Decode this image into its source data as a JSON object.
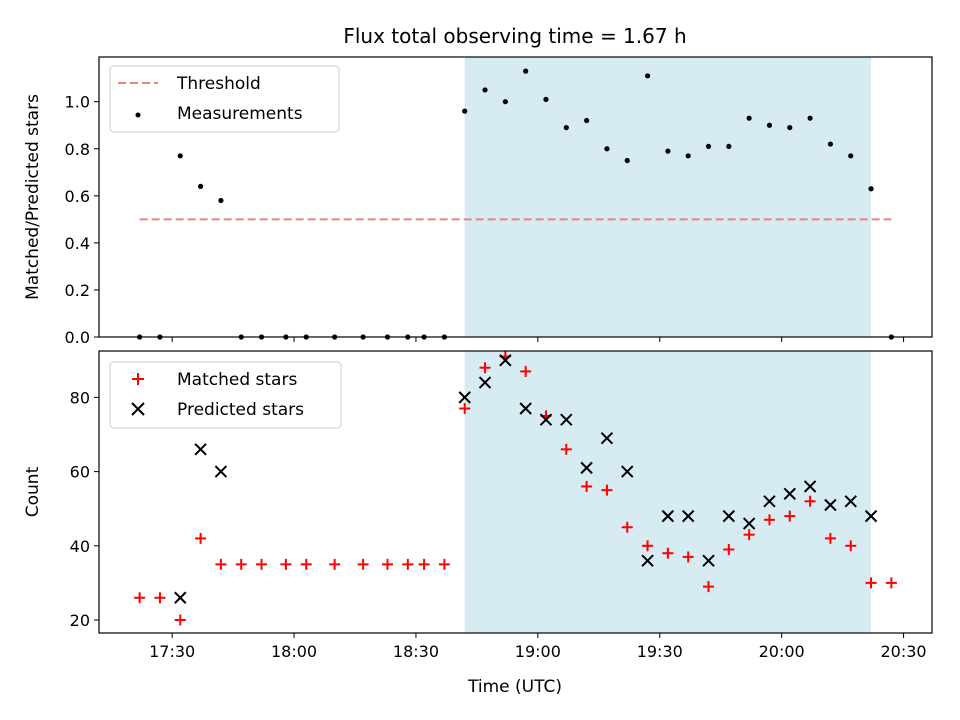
{
  "chart_data": [
    {
      "type": "scatter",
      "title": "Flux total observing time = 1.67 h",
      "ylabel": "Matched/Predicted stars",
      "xlabel": "",
      "xlim": [
        "17:12",
        "20:37"
      ],
      "ylim": [
        0,
        1.19
      ],
      "yticks": [
        "0.0",
        "0.2",
        "0.4",
        "0.6",
        "0.8",
        "1.0"
      ],
      "xticks": [
        "17:30",
        "18:00",
        "18:30",
        "19:00",
        "19:30",
        "20:00",
        "20:30"
      ],
      "xticklabels_shown": false,
      "shaded_span": {
        "start": "18:42",
        "end": "20:22",
        "color": "#add8e6"
      },
      "legend": {
        "position": "top-left"
      },
      "series": [
        {
          "name": "Threshold",
          "kind": "dashed-line",
          "color": "#f08080",
          "x": [
            "17:22",
            "20:27"
          ],
          "y": [
            0.5,
            0.5
          ]
        },
        {
          "name": "Measurements",
          "kind": "dot",
          "color": "#000000",
          "x": [
            "17:22",
            "17:27",
            "17:32",
            "17:37",
            "17:42",
            "17:47",
            "17:52",
            "17:58",
            "18:03",
            "18:10",
            "18:17",
            "18:23",
            "18:28",
            "18:32",
            "18:37",
            "18:42",
            "18:47",
            "18:52",
            "18:57",
            "19:02",
            "19:07",
            "19:12",
            "19:17",
            "19:22",
            "19:27",
            "19:32",
            "19:37",
            "19:42",
            "19:47",
            "19:52",
            "19:57",
            "20:02",
            "20:07",
            "20:12",
            "20:17",
            "20:22",
            "20:27"
          ],
          "y": [
            0,
            0,
            0.77,
            0.64,
            0.58,
            0,
            0,
            0,
            0,
            0,
            0,
            0,
            0,
            0,
            0,
            0.96,
            1.05,
            1.0,
            1.13,
            1.01,
            0.89,
            0.92,
            0.8,
            0.75,
            1.11,
            0.79,
            0.77,
            0.81,
            0.81,
            0.93,
            0.9,
            0.89,
            0.93,
            0.82,
            0.77,
            0.63,
            0
          ]
        }
      ]
    },
    {
      "type": "scatter",
      "title": "",
      "ylabel": "Count",
      "xlabel": "Time (UTC)",
      "xlim": [
        "17:12",
        "20:37"
      ],
      "ylim": [
        16.5,
        92.5
      ],
      "yticks": [
        "20",
        "40",
        "60",
        "80"
      ],
      "xticks": [
        "17:30",
        "18:00",
        "18:30",
        "19:00",
        "19:30",
        "20:00",
        "20:30"
      ],
      "xticklabels_shown": true,
      "shaded_span": {
        "start": "18:42",
        "end": "20:22",
        "color": "#add8e6"
      },
      "legend": {
        "position": "top-left"
      },
      "series": [
        {
          "name": "Matched stars",
          "kind": "plus",
          "color": "#ff0000",
          "x": [
            "17:22",
            "17:27",
            "17:32",
            "17:37",
            "17:42",
            "17:47",
            "17:52",
            "17:58",
            "18:03",
            "18:10",
            "18:17",
            "18:23",
            "18:28",
            "18:32",
            "18:37",
            "18:42",
            "18:47",
            "18:52",
            "18:57",
            "19:02",
            "19:07",
            "19:12",
            "19:17",
            "19:22",
            "19:27",
            "19:32",
            "19:37",
            "19:42",
            "19:47",
            "19:52",
            "19:57",
            "20:02",
            "20:07",
            "20:12",
            "20:17",
            "20:22",
            "20:27"
          ],
          "y": [
            26,
            26,
            20,
            42,
            35,
            35,
            35,
            35,
            35,
            35,
            35,
            35,
            35,
            35,
            35,
            77,
            88,
            91,
            87,
            75,
            66,
            56,
            55,
            45,
            40,
            38,
            37,
            29,
            39,
            43,
            47,
            48,
            52,
            42,
            40,
            30,
            30
          ]
        },
        {
          "name": "Predicted stars",
          "kind": "x",
          "color": "#000000",
          "x": [
            "17:32",
            "17:37",
            "17:42",
            "18:42",
            "18:47",
            "18:52",
            "18:57",
            "19:02",
            "19:07",
            "19:12",
            "19:17",
            "19:22",
            "19:27",
            "19:32",
            "19:37",
            "19:42",
            "19:47",
            "19:52",
            "19:57",
            "20:02",
            "20:07",
            "20:12",
            "20:17",
            "20:22"
          ],
          "y": [
            26,
            66,
            60,
            80,
            84,
            90,
            77,
            74,
            74,
            61,
            69,
            60,
            36,
            48,
            48,
            36,
            48,
            46,
            52,
            54,
            56,
            51,
            52,
            48
          ]
        }
      ]
    }
  ]
}
